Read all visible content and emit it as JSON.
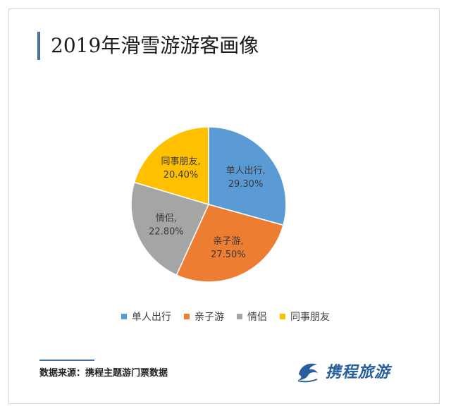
{
  "header": {
    "title": "2019年滑雪游游客画像"
  },
  "chart_data": {
    "type": "pie",
    "title": "2019年滑雪游游客画像",
    "slices": [
      {
        "label": "单人出行",
        "value": 29.3,
        "display": "29.30%",
        "color": "#5b9bd5"
      },
      {
        "label": "亲子游",
        "value": 27.5,
        "display": "27.50%",
        "color": "#ed7d31"
      },
      {
        "label": "情侣",
        "value": 22.8,
        "display": "22.80%",
        "color": "#a5a5a5"
      },
      {
        "label": "同事朋友",
        "value": 20.4,
        "display": "20.40%",
        "color": "#ffc000"
      }
    ],
    "legend_position": "bottom"
  },
  "footer": {
    "source": "数据来源：携程主题游门票数据",
    "logo_text": "携程旅游",
    "logo_icon": "dolphin-icon"
  }
}
